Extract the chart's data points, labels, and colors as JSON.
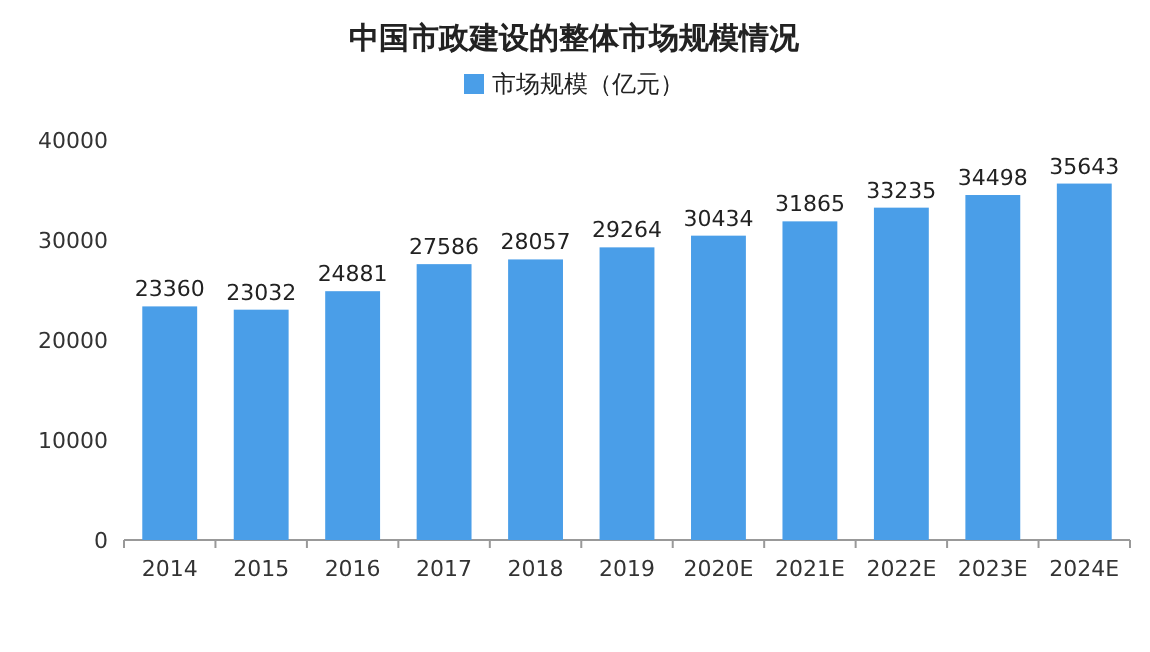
{
  "chart_data": {
    "type": "bar",
    "title": "中国市政建设的整体市场规模情况",
    "categories": [
      "2014",
      "2015",
      "2016",
      "2017",
      "2018",
      "2019",
      "2020E",
      "2021E",
      "2022E",
      "2023E",
      "2024E"
    ],
    "series": [
      {
        "name": "市场规模（亿元）",
        "color": "#4a9ee8",
        "values": [
          23360,
          23032,
          24881,
          27586,
          28057,
          29264,
          30434,
          31865,
          33235,
          34498,
          35643
        ]
      }
    ],
    "ylim": [
      0,
      40000
    ],
    "yticks": [
      0,
      10000,
      20000,
      30000,
      40000
    ],
    "data_labels": true,
    "legend": "top"
  }
}
